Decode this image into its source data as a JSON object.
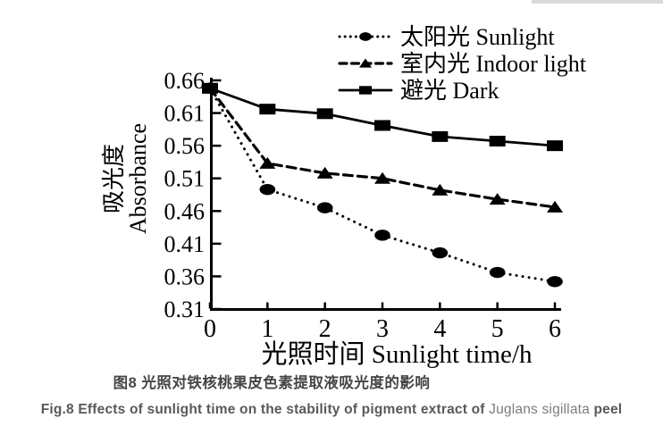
{
  "page": {
    "background": "#ffffff",
    "top_strip_color": "#d9d9da",
    "ink_color": "#000000"
  },
  "chart_data": {
    "type": "line",
    "title": "",
    "xlabel": "光照时间 Sunlight time/h",
    "ylabel": "吸光度 Absorbance",
    "ylabel_lines": [
      "吸光度",
      "Absorbance"
    ],
    "x": [
      0,
      1,
      2,
      3,
      4,
      5,
      6
    ],
    "xlim": [
      0,
      6
    ],
    "ylim": [
      0.31,
      0.66
    ],
    "x_ticks": [
      0,
      1,
      2,
      3,
      4,
      5,
      6
    ],
    "y_ticks": [
      0.66,
      0.61,
      0.56,
      0.51,
      0.46,
      0.41,
      0.36,
      0.31
    ],
    "grid": false,
    "legend_position": "top-right",
    "series": [
      {
        "name": "太阳光 Sunlight",
        "marker": "circle",
        "line": "dotted",
        "values": [
          0.648,
          0.493,
          0.465,
          0.423,
          0.396,
          0.366,
          0.352
        ]
      },
      {
        "name": "室内光 Indoor light",
        "marker": "triangle",
        "line": "dashed",
        "values": [
          0.648,
          0.533,
          0.518,
          0.51,
          0.492,
          0.478,
          0.466
        ]
      },
      {
        "name": "避光 Dark",
        "marker": "square",
        "line": "solid",
        "values": [
          0.648,
          0.616,
          0.609,
          0.591,
          0.574,
          0.567,
          0.56
        ]
      }
    ]
  },
  "captions": {
    "zh": "图8 光照对铁核桃果皮色素提取液吸光度的影响",
    "en_main": "Fig.8 Effects of sunlight time on the stability of pigment extract of ",
    "en_species": "Juglans sigillata",
    "en_tail": " peel"
  }
}
